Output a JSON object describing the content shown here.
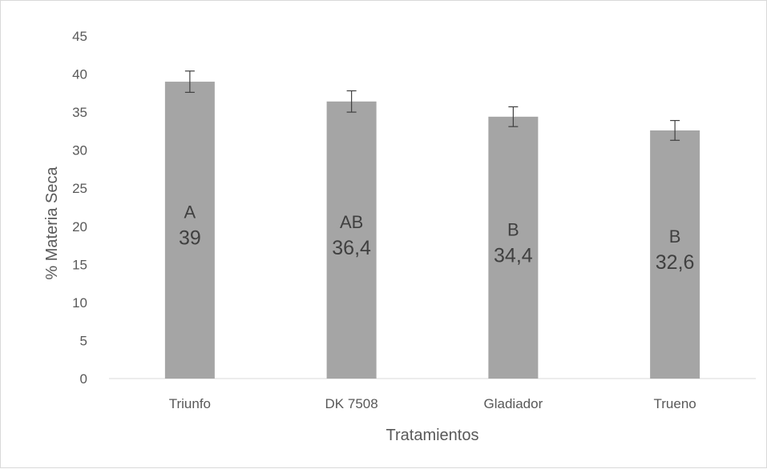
{
  "chart_data": {
    "type": "bar",
    "categories": [
      "Triunfo",
      "DK 7508",
      "Gladiador",
      "Trueno"
    ],
    "values": [
      39,
      36.4,
      34.4,
      32.6
    ],
    "error": [
      1.4,
      1.4,
      1.3,
      1.3
    ],
    "group_letters": [
      "A",
      "AB",
      "B",
      "B"
    ],
    "value_labels": [
      "39",
      "36,4",
      "34,4",
      "32,6"
    ],
    "title": "",
    "xlabel": "Tratamientos",
    "ylabel": "% Materia Seca",
    "ylim": [
      0,
      45
    ],
    "yticks": [
      0,
      5,
      10,
      15,
      20,
      25,
      30,
      35,
      40,
      45
    ],
    "grid": false,
    "legend": "none",
    "colors": {
      "bar": "#a5a5a5",
      "error_bar": "#404040",
      "axis": "#d9d9d9"
    }
  }
}
